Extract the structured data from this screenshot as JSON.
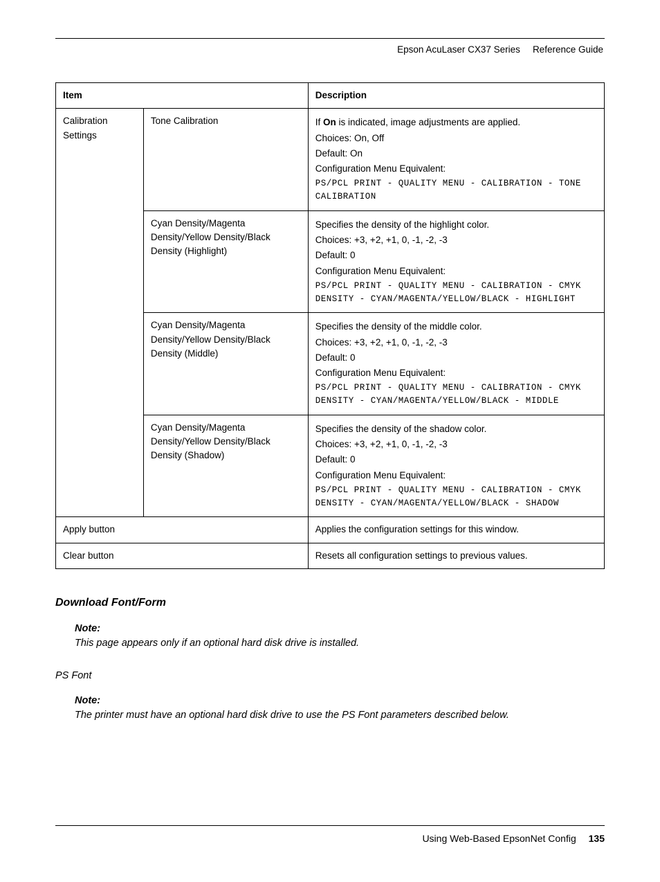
{
  "header": {
    "product": "Epson AcuLaser CX37 Series",
    "doc_type": "Reference Guide"
  },
  "table": {
    "headers": {
      "item": "Item",
      "description": "Description"
    },
    "group_label": "Calibration Settings",
    "rows": [
      {
        "sub": "Tone Calibration",
        "desc_lines": [
          {
            "type": "rich",
            "prefix": "If ",
            "bold": "On",
            "suffix": " is indicated, image adjustments are applied."
          },
          {
            "type": "plain",
            "text": "Choices: On, Off"
          },
          {
            "type": "plain",
            "text": "Default: On"
          },
          {
            "type": "plain",
            "text": "Configuration Menu Equivalent:"
          },
          {
            "type": "mono",
            "text": "PS/PCL PRINT - QUALITY MENU - CALIBRATION - TONE CALIBRATION"
          }
        ]
      },
      {
        "sub": "Cyan Density/Magenta Density/Yellow Density/Black Density (Highlight)",
        "desc_lines": [
          {
            "type": "plain",
            "text": "Specifies the density of the highlight color."
          },
          {
            "type": "plain",
            "text": "Choices: +3, +2, +1, 0, -1, -2, -3"
          },
          {
            "type": "plain",
            "text": "Default: 0"
          },
          {
            "type": "plain",
            "text": "Configuration Menu Equivalent:"
          },
          {
            "type": "mono",
            "text": "PS/PCL PRINT - QUALITY MENU - CALIBRATION - CMYK DENSITY - CYAN/MAGENTA/YELLOW/BLACK - HIGHLIGHT"
          }
        ]
      },
      {
        "sub": "Cyan Density/Magenta Density/Yellow Density/Black Density (Middle)",
        "desc_lines": [
          {
            "type": "plain",
            "text": "Specifies the density of the middle color."
          },
          {
            "type": "plain",
            "text": "Choices: +3, +2, +1, 0, -1, -2, -3"
          },
          {
            "type": "plain",
            "text": "Default: 0"
          },
          {
            "type": "plain",
            "text": "Configuration Menu Equivalent:"
          },
          {
            "type": "mono",
            "text": "PS/PCL PRINT - QUALITY MENU - CALIBRATION - CMYK DENSITY - CYAN/MAGENTA/YELLOW/BLACK - MIDDLE"
          }
        ]
      },
      {
        "sub": "Cyan Density/Magenta Density/Yellow Density/Black Density (Shadow)",
        "desc_lines": [
          {
            "type": "plain",
            "text": "Specifies the density of the shadow color."
          },
          {
            "type": "plain",
            "text": "Choices: +3, +2, +1, 0, -1, -2, -3"
          },
          {
            "type": "plain",
            "text": "Default: 0"
          },
          {
            "type": "plain",
            "text": "Configuration Menu Equivalent:"
          },
          {
            "type": "mono",
            "text": "PS/PCL PRINT - QUALITY MENU - CALIBRATION - CMYK DENSITY - CYAN/MAGENTA/YELLOW/BLACK - SHADOW"
          }
        ]
      }
    ],
    "simple_rows": [
      {
        "item": "Apply button",
        "desc": "Applies the configuration settings for this window."
      },
      {
        "item": "Clear button",
        "desc": "Resets all configuration settings to previous values."
      }
    ]
  },
  "section_heading": "Download Font/Form",
  "note1": {
    "label": "Note:",
    "body": "This page appears only if an optional hard disk drive is installed."
  },
  "sub_heading": "PS Font",
  "note2": {
    "label": "Note:",
    "body": "The printer must have an optional hard disk drive to use the PS Font parameters described below."
  },
  "footer": {
    "text": "Using Web-Based EpsonNet Config",
    "page": "135"
  }
}
